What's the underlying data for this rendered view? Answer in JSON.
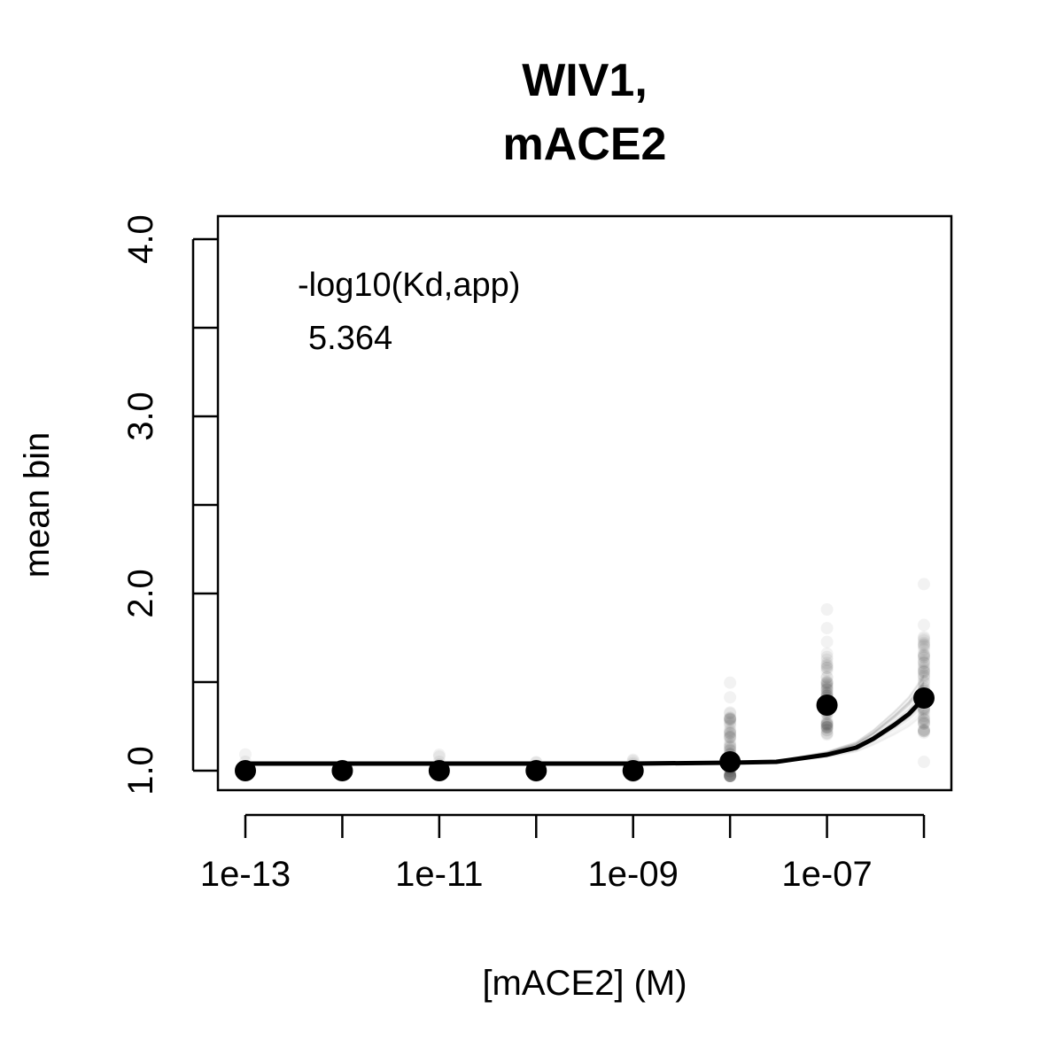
{
  "chart_data": {
    "type": "scatter",
    "title_lines": [
      "WIV1,",
      "mACE2"
    ],
    "xlabel": "[mACE2] (M)",
    "ylabel": "mean bin",
    "x_scale": "log10",
    "xlim": [
      1e-13,
      1e-06
    ],
    "ylim": [
      1.0,
      4.0
    ],
    "x_ticks": [
      1e-13,
      1e-11,
      1e-09,
      1e-07
    ],
    "x_tick_labels": [
      "1e-13",
      "1e-11",
      "1e-09",
      "1e-07"
    ],
    "y_ticks": [
      1.0,
      1.5,
      2.0,
      2.5,
      3.0,
      3.5,
      4.0
    ],
    "y_tick_labels": [
      "1.0",
      "",
      "2.0",
      "",
      "3.0",
      "",
      "4.0"
    ],
    "annotation": {
      "label": "-log10(Kd,app)",
      "value": "5.364"
    },
    "series": [
      {
        "x": [
          1e-13,
          1e-12,
          1e-11,
          1e-10,
          1e-09,
          1e-08,
          1e-07,
          1e-06
        ],
        "y": [
          1.0,
          1.0,
          1.0,
          1.0,
          1.0,
          1.05,
          1.37,
          1.41
        ]
      }
    ],
    "fit_curve": {
      "x": [
        1e-13,
        1e-12,
        1e-11,
        1e-10,
        1e-09,
        1e-08,
        3e-08,
        1e-07,
        2e-07,
        3e-07,
        5e-07,
        7e-07,
        1e-06
      ],
      "y": [
        1.04,
        1.04,
        1.04,
        1.04,
        1.04,
        1.045,
        1.05,
        1.09,
        1.13,
        1.18,
        1.26,
        1.32,
        1.41
      ]
    },
    "grid": false,
    "legend": "none"
  }
}
